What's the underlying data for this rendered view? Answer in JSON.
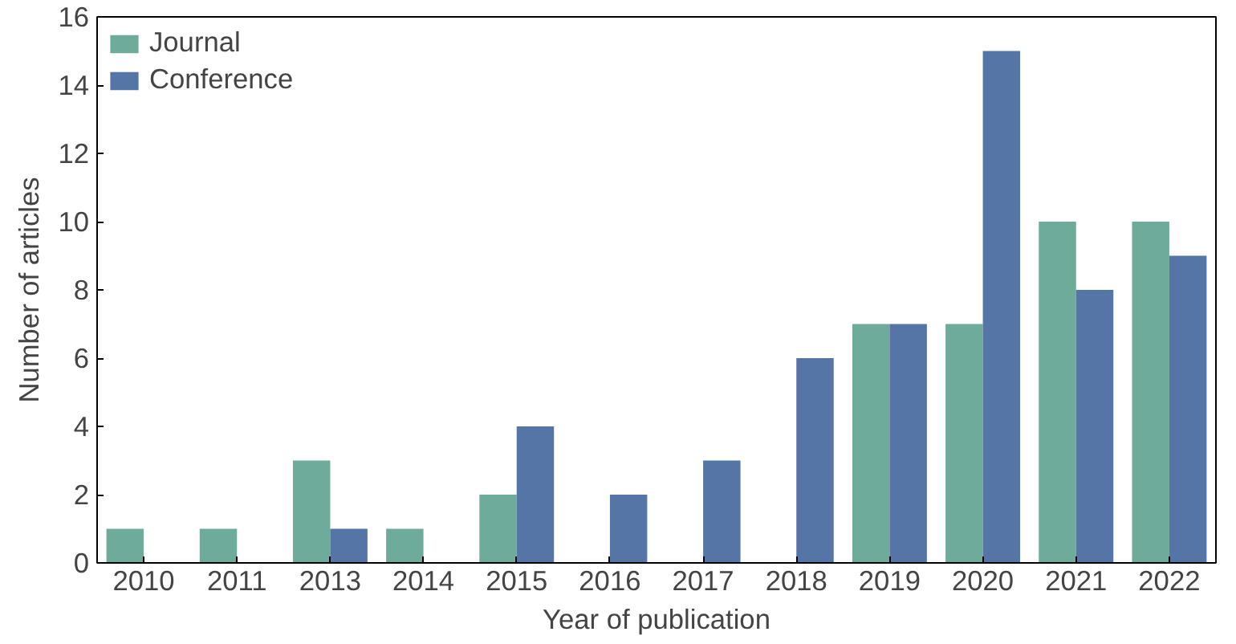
{
  "chart_data": {
    "type": "bar",
    "xlabel": "Year of publication",
    "ylabel": "Number of articles",
    "categories": [
      "2010",
      "2011",
      "2013",
      "2014",
      "2015",
      "2016",
      "2017",
      "2018",
      "2019",
      "2020",
      "2021",
      "2022"
    ],
    "series": [
      {
        "name": "Journal",
        "color": "#6fab9a",
        "values": [
          1,
          1,
          3,
          1,
          2,
          0,
          0,
          0,
          7,
          7,
          10,
          10
        ]
      },
      {
        "name": "Conference",
        "color": "#5575a6",
        "values": [
          0,
          0,
          1,
          0,
          4,
          2,
          3,
          6,
          7,
          15,
          8,
          9
        ]
      }
    ],
    "ylim": [
      0,
      16
    ],
    "yticks": [
      0,
      2,
      4,
      6,
      8,
      10,
      12,
      14,
      16
    ],
    "grid": false,
    "legend": "top left"
  }
}
